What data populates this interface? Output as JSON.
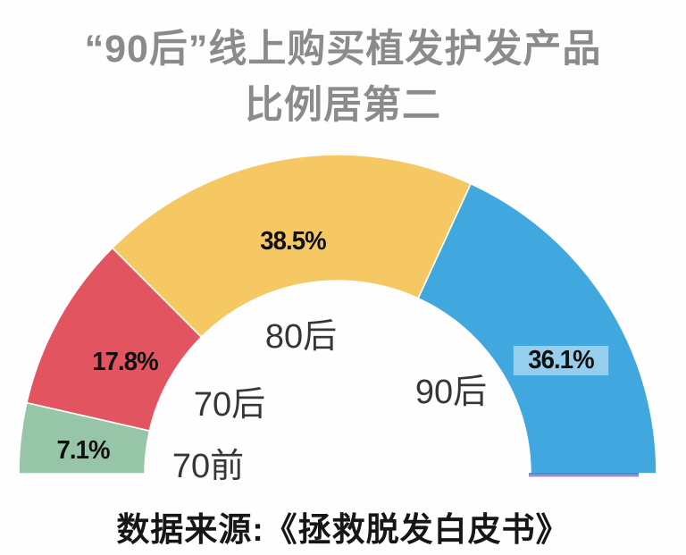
{
  "title": {
    "line1": "“90后”线上购买植发护发产品",
    "line2": "比例居第二",
    "color": "#8b8b8b"
  },
  "source_note": "数据来源:《拯救脱发白皮书》",
  "chart_data": {
    "type": "pie",
    "subtype": "half-donut-gauge",
    "title": "“90后”线上购买植发护发产品比例居第二",
    "unit": "%",
    "sweep_degrees": 180,
    "start_side": "left",
    "direction": "clockwise",
    "segments": [
      {
        "label": "70前",
        "value": 7.1,
        "display": "7.1%",
        "color": "#97C5A7"
      },
      {
        "label": "70后",
        "value": 17.8,
        "display": "17.8%",
        "color": "#E25460"
      },
      {
        "label": "80后",
        "value": 38.5,
        "display": "38.5%",
        "color": "#F5C863"
      },
      {
        "label": "90后",
        "value": 36.1,
        "display": "36.1%",
        "color": "#41A8DF"
      }
    ],
    "value_label_color": "#101010",
    "category_label_color": "#363636",
    "segment_gap_color": "#ffffff",
    "value_highlight_90hou": "rgba(255,255,255,0.45)",
    "baseline_accent": {
      "top_color": "#2E6FB5",
      "bottom_color": "#8A5FA6"
    }
  }
}
